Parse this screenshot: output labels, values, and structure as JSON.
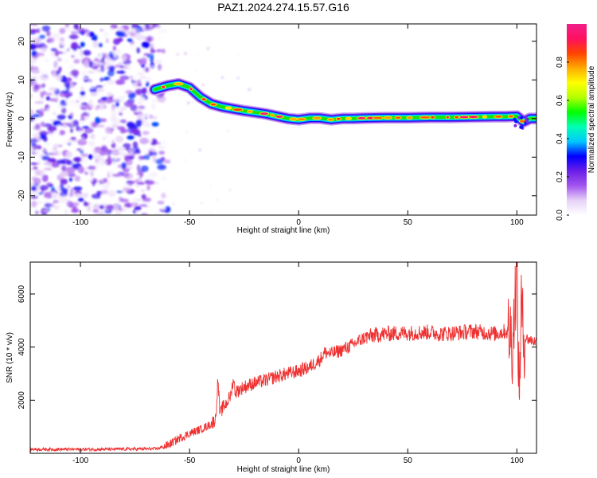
{
  "title": "PAZ1.2024.274.15.57.G16",
  "chart_data": [
    {
      "type": "heatmap",
      "xlabel": "Height of straight line (km)",
      "ylabel": "Frequency (Hz)",
      "xlim": [
        -123,
        109
      ],
      "ylim": [
        -25,
        24.5
      ],
      "xticks": [
        -100,
        -50,
        0,
        50,
        100
      ],
      "yticks": [
        -20,
        -10,
        0,
        10,
        20
      ],
      "noise_region_x": [
        -123,
        -60
      ],
      "ridge": {
        "x": [
          -66,
          -60,
          -55,
          -50,
          -45,
          -40,
          -35,
          -30,
          -25,
          -20,
          -15,
          -10,
          -5,
          0,
          5,
          10,
          15,
          20,
          25,
          30,
          40,
          50,
          60,
          70,
          80,
          90,
          95,
          100,
          103,
          106,
          109
        ],
        "freq": [
          7.5,
          8.5,
          9.0,
          8.0,
          5.5,
          3.8,
          3.0,
          2.5,
          2.0,
          1.6,
          1.2,
          0.6,
          0.0,
          -0.3,
          0.1,
          0.1,
          -0.3,
          0.0,
          0.0,
          0.1,
          0.2,
          0.2,
          0.3,
          0.3,
          0.4,
          0.5,
          0.5,
          0.6,
          -0.8,
          0.0,
          0.0
        ]
      },
      "colorbar": {
        "label": "Normalized spectral amplitude",
        "ticks": [
          "0.0",
          "0.2",
          "0.4",
          "0.6",
          "0.8"
        ],
        "tick_values": [
          0.0,
          0.2,
          0.4,
          0.6,
          0.8
        ],
        "range": [
          0,
          1
        ],
        "colors": [
          "#ffffff",
          "#e6d2f7",
          "#a255ee",
          "#6a1ee6",
          "#0000ff",
          "#00c8ff",
          "#00ffb4",
          "#00ff00",
          "#b4ff00",
          "#ffff00",
          "#ffaa00",
          "#ff4400",
          "#ff1060",
          "#f0208a"
        ]
      }
    },
    {
      "type": "line",
      "xlabel": "Height of straight line (km)",
      "ylabel": "SNR (10 * v/v)",
      "xlim": [
        -123,
        109
      ],
      "ylim": [
        0,
        7200
      ],
      "xticks": [
        -100,
        -50,
        0,
        50,
        100
      ],
      "yticks": [
        2000,
        4000,
        6000
      ],
      "color": "#ee3030",
      "series": [
        {
          "x": [
            -123,
            -90,
            -65,
            -60,
            -55,
            -50,
            -45,
            -40,
            -38,
            -37,
            -36,
            -35,
            -33,
            -31,
            -30,
            -29,
            -25,
            -20,
            -15,
            -10,
            -5,
            0,
            5,
            10,
            12,
            15,
            20,
            25,
            30,
            35,
            40,
            45,
            50,
            55,
            60,
            65,
            70,
            75,
            80,
            85,
            90,
            95,
            97,
            98,
            99,
            100,
            101,
            102,
            103,
            105,
            109
          ],
          "y": [
            150,
            150,
            170,
            300,
            550,
            750,
            900,
            1100,
            1300,
            2800,
            1400,
            1700,
            1900,
            2200,
            2800,
            2300,
            2500,
            2650,
            2750,
            2900,
            3000,
            3100,
            3250,
            3550,
            3800,
            3750,
            3900,
            4100,
            4350,
            4450,
            4500,
            4520,
            4530,
            4550,
            4560,
            4500,
            4520,
            4550,
            4600,
            4550,
            4500,
            4600,
            4500,
            4100,
            5500,
            7200,
            2000,
            5600,
            4400,
            4300,
            4200
          ]
        }
      ]
    }
  ]
}
